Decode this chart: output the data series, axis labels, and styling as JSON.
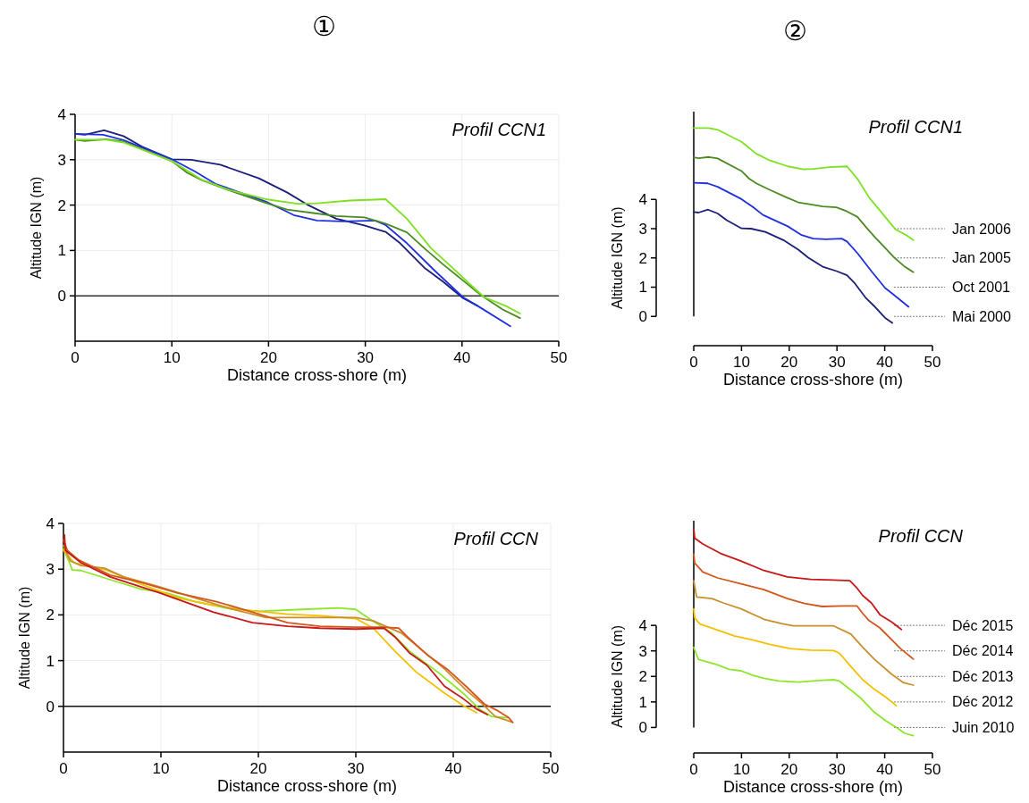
{
  "chart_data": [
    {
      "type": "line",
      "title": "Profil CCN1",
      "annotations": [
        "①"
      ],
      "xlabel": "Distance cross-shore (m)",
      "ylabel": "Altitude IGN (m)",
      "xlim": [
        0,
        50
      ],
      "ylim": [
        -1,
        4
      ],
      "xticks": [
        0,
        10,
        20,
        30,
        40,
        50
      ],
      "yticks": [
        0,
        1,
        2,
        3,
        4
      ],
      "grid": true,
      "line_style": "solid",
      "marker": "none",
      "ref_lines": [
        {
          "axis": "y",
          "value": 0,
          "color": "#333333",
          "line_style": "solid"
        }
      ],
      "series": [
        {
          "color": "#1a1f7a",
          "x": [
            0,
            1,
            3,
            5,
            6.9,
            10,
            12,
            15,
            19,
            21.9,
            24,
            27,
            29.9,
            32.1,
            33.6,
            36.1,
            38,
            40.1,
            41.6
          ],
          "values": [
            3.57,
            3.55,
            3.65,
            3.52,
            3.29,
            3.01,
            3.0,
            2.89,
            2.59,
            2.28,
            2.01,
            1.7,
            1.55,
            1.41,
            1.16,
            0.62,
            0.32,
            -0.05,
            -0.22
          ]
        },
        {
          "color": "#1f2fe0",
          "x": [
            0,
            2.9,
            5,
            10,
            12.4,
            14.5,
            19.7,
            22.6,
            25,
            27.7,
            31,
            32.1,
            34.3,
            37.2,
            40.1,
            41.6,
            45
          ],
          "values": [
            3.57,
            3.55,
            3.43,
            3.01,
            2.74,
            2.47,
            2.08,
            1.78,
            1.66,
            1.64,
            1.66,
            1.56,
            1.16,
            0.55,
            -0.03,
            -0.22,
            -0.67
          ]
        },
        {
          "color": "#4a8a20",
          "x": [
            0,
            1,
            3.2,
            5,
            10,
            11.6,
            13.1,
            16,
            19.7,
            21.9,
            24.8,
            27,
            29.9,
            32.1,
            34.3,
            36.1,
            38,
            39.8,
            42,
            44.2,
            46
          ],
          "values": [
            3.44,
            3.41,
            3.45,
            3.4,
            2.97,
            2.71,
            2.55,
            2.32,
            2.05,
            1.9,
            1.82,
            1.76,
            1.73,
            1.59,
            1.4,
            1.05,
            0.7,
            0.39,
            0.01,
            -0.3,
            -0.49
          ]
        },
        {
          "color": "#7ee021",
          "x": [
            0,
            3.2,
            5,
            10,
            13.1,
            16,
            19.7,
            23,
            25,
            28.4,
            32.1,
            34.3,
            36.8,
            39,
            40.9,
            42.3,
            44.5,
            46
          ],
          "values": [
            3.44,
            3.44,
            3.38,
            2.97,
            2.56,
            2.33,
            2.13,
            2.03,
            2.04,
            2.1,
            2.13,
            1.7,
            1.05,
            0.62,
            0.24,
            -0.03,
            -0.22,
            -0.39
          ]
        }
      ]
    },
    {
      "type": "line",
      "title": "Profil CCN1",
      "annotations": [
        "②"
      ],
      "xlabel": "Distance cross-shore (m)",
      "ylabel": "Altitude IGN (m)",
      "xlim": [
        0,
        50
      ],
      "ylim": [
        -1,
        7
      ],
      "xticks": [
        0,
        10,
        20,
        30,
        40,
        50
      ],
      "yticks": [
        0,
        1,
        2,
        3,
        4
      ],
      "line_style": "solid",
      "marker": "none",
      "ref_lines": [
        {
          "axis": "y",
          "value": 3,
          "label": "Jan 2006",
          "color": "#555555",
          "line_style": "dotted"
        },
        {
          "axis": "y",
          "value": 2,
          "label": "Jan 2005",
          "color": "#555555",
          "line_style": "dotted"
        },
        {
          "axis": "y",
          "value": 1,
          "label": "Oct 2001",
          "color": "#555555",
          "line_style": "dotted"
        },
        {
          "axis": "y",
          "value": 0,
          "label": "Mai 2000",
          "color": "#555555",
          "line_style": "dotted"
        }
      ],
      "series": [
        {
          "color": "#1a1f7a",
          "x": [
            0,
            1,
            3,
            5,
            6.9,
            10,
            12,
            15,
            19,
            21.9,
            24,
            27,
            29.9,
            32.1,
            33.6,
            36.1,
            38,
            40.1,
            41.6
          ],
          "values": [
            3.57,
            3.55,
            3.65,
            3.52,
            3.29,
            3.01,
            3.0,
            2.89,
            2.59,
            2.28,
            2.01,
            1.7,
            1.55,
            1.41,
            1.16,
            0.62,
            0.32,
            -0.05,
            -0.22
          ]
        },
        {
          "color": "#1f2fe0",
          "x": [
            0,
            2.9,
            5,
            10,
            12.4,
            14.5,
            19.7,
            22.6,
            25,
            27.7,
            31,
            32.1,
            34.3,
            37.2,
            40.1,
            41.6,
            45
          ],
          "values": [
            4.57,
            4.55,
            4.43,
            4.01,
            3.74,
            3.47,
            3.08,
            2.78,
            2.66,
            2.64,
            2.66,
            2.56,
            2.16,
            1.55,
            0.97,
            0.78,
            0.33
          ]
        },
        {
          "color": "#4a8a20",
          "x": [
            0,
            1,
            3.2,
            5,
            10,
            11.6,
            13.1,
            16,
            19.7,
            21.9,
            24.8,
            27,
            29.9,
            32.1,
            34.3,
            36.1,
            38,
            39.8,
            42,
            44.2,
            46
          ],
          "values": [
            5.44,
            5.41,
            5.45,
            5.4,
            4.97,
            4.71,
            4.55,
            4.32,
            4.05,
            3.9,
            3.82,
            3.76,
            3.73,
            3.59,
            3.4,
            3.05,
            2.7,
            2.39,
            2.01,
            1.7,
            1.51
          ]
        },
        {
          "color": "#7ee021",
          "x": [
            0,
            3.2,
            5,
            10,
            13.1,
            16,
            19.7,
            23,
            25,
            28.4,
            32.1,
            34.3,
            36.8,
            39,
            40.9,
            42.3,
            44.5,
            46
          ],
          "values": [
            6.44,
            6.44,
            6.38,
            5.97,
            5.56,
            5.33,
            5.13,
            5.03,
            5.04,
            5.1,
            5.13,
            4.7,
            4.05,
            3.62,
            3.24,
            2.97,
            2.78,
            2.61
          ]
        }
      ]
    },
    {
      "type": "line",
      "title": "Profil CCN",
      "xlabel": "Distance cross-shore (m)",
      "ylabel": "Altitude IGN (m)",
      "xlim": [
        0,
        50
      ],
      "ylim": [
        -1,
        4
      ],
      "xticks": [
        0,
        10,
        20,
        30,
        40,
        50
      ],
      "yticks": [
        0,
        1,
        2,
        3,
        4
      ],
      "grid": true,
      "line_style": "solid",
      "marker": "none",
      "ref_lines": [
        {
          "axis": "y",
          "value": 0,
          "color": "#111111",
          "line_style": "solid"
        }
      ],
      "series": [
        {
          "color": "#8ee62b",
          "x": [
            0,
            0.7,
            0.9,
            1.8,
            5.1,
            8,
            10.6,
            13.5,
            17.2,
            20.1,
            24.5,
            28.2,
            30,
            31.5,
            33.7,
            35.5,
            38.4,
            41,
            42.8,
            43.9,
            45.7
          ],
          "values": [
            3.44,
            3.1,
            2.98,
            2.97,
            2.75,
            2.56,
            2.48,
            2.29,
            2.13,
            2.08,
            2.12,
            2.15,
            2.12,
            1.9,
            1.6,
            1.21,
            0.75,
            0.29,
            -0.08,
            -0.22,
            -0.25
          ]
        },
        {
          "color": "#f5c000",
          "x": [
            0,
            1.1,
            4.4,
            8,
            11.7,
            15.4,
            19,
            22.8,
            26.3,
            30,
            31.8,
            34,
            36.2,
            39.1,
            41,
            42.4
          ],
          "values": [
            3.41,
            3.14,
            2.98,
            2.67,
            2.37,
            2.21,
            2.1,
            2.02,
            1.98,
            1.92,
            1.71,
            1.21,
            0.75,
            0.29,
            0.02,
            -0.14
          ]
        },
        {
          "color": "#c98f2c",
          "x": [
            0,
            0.7,
            1.8,
            4.2,
            6.2,
            9.9,
            13.5,
            17.2,
            20.8,
            24.5,
            30,
            31.8,
            34.7,
            36.9,
            39.1,
            41.3,
            42.8,
            44.3,
            46.1
          ],
          "values": [
            3.52,
            3.18,
            3.08,
            3.02,
            2.83,
            2.61,
            2.37,
            2.13,
            1.94,
            1.94,
            1.94,
            1.87,
            1.6,
            1.21,
            0.82,
            0.36,
            0.09,
            -0.22,
            -0.35
          ]
        },
        {
          "color": "#d4561c",
          "x": [
            0,
            0.4,
            1.5,
            4.8,
            8,
            11.7,
            15.7,
            19.4,
            23,
            26.3,
            30,
            32.9,
            34.4,
            35.5,
            37.3,
            39.5,
            41.3,
            43.2,
            44.6,
            45.7,
            46.1
          ],
          "values": [
            3.64,
            3.41,
            3.21,
            2.87,
            2.71,
            2.48,
            2.29,
            2.06,
            1.83,
            1.75,
            1.73,
            1.73,
            1.71,
            1.48,
            1.13,
            0.79,
            0.44,
            0.05,
            -0.1,
            -0.25,
            -0.35
          ]
        },
        {
          "color": "#c81818",
          "x": [
            0.1,
            0.2,
            1.8,
            4.8,
            9.9,
            15.4,
            19.4,
            23,
            26.3,
            30,
            32.9,
            34,
            35.5,
            37.3,
            39.1,
            41,
            42.4,
            43.5
          ],
          "values": [
            3.75,
            3.41,
            3.14,
            2.83,
            2.48,
            2.06,
            1.83,
            1.75,
            1.71,
            1.69,
            1.71,
            1.52,
            1.17,
            0.9,
            0.44,
            0.17,
            -0.06,
            -0.18
          ]
        }
      ]
    },
    {
      "type": "line",
      "title": "Profil CCN",
      "xlabel": "Distance cross-shore (m)",
      "ylabel": "Altitude IGN (m)",
      "xlim": [
        0,
        50
      ],
      "ylim": [
        -1,
        8.1
      ],
      "xticks": [
        0,
        10,
        20,
        30,
        40,
        50
      ],
      "yticks": [
        0,
        1,
        2,
        3,
        4
      ],
      "line_style": "solid",
      "marker": "none",
      "ref_lines": [
        {
          "axis": "y",
          "value": 4,
          "label": "Déc 2015",
          "color": "#555555",
          "line_style": "dotted"
        },
        {
          "axis": "y",
          "value": 3,
          "label": "Déc 2014",
          "color": "#555555",
          "line_style": "dotted"
        },
        {
          "axis": "y",
          "value": 2,
          "label": "Déc 2013",
          "color": "#555555",
          "line_style": "dotted"
        },
        {
          "axis": "y",
          "value": 1,
          "label": "Déc 2012",
          "color": "#555555",
          "line_style": "dotted"
        },
        {
          "axis": "y",
          "value": 0,
          "label": "Juin 2010",
          "color": "#555555",
          "line_style": "dotted"
        }
      ],
      "series": [
        {
          "color": "#8ee62b",
          "x": [
            0,
            1,
            1.9,
            5,
            7.4,
            9.9,
            12.3,
            14.7,
            17.8,
            22,
            26.9,
            29.3,
            30.5,
            32.9,
            34.8,
            37.8,
            40.3,
            42.7,
            44.2,
            46
          ],
          "values": [
            3.14,
            2.66,
            2.62,
            2.45,
            2.28,
            2.22,
            2.05,
            1.93,
            1.82,
            1.78,
            1.85,
            1.87,
            1.82,
            1.47,
            1.18,
            0.6,
            0.25,
            -0.03,
            -0.23,
            -0.32
          ]
        },
        {
          "color": "#f5c000",
          "x": [
            0,
            0.2,
            1.3,
            5,
            8.6,
            12.3,
            15.9,
            20.2,
            24.5,
            29.3,
            30.5,
            32.9,
            35.4,
            37.8,
            40.3,
            42.4
          ],
          "values": [
            4.65,
            4.3,
            4.05,
            3.82,
            3.58,
            3.43,
            3.26,
            3.09,
            3.03,
            3.01,
            2.91,
            2.39,
            1.87,
            1.5,
            1.18,
            0.86
          ]
        },
        {
          "color": "#c98f2c",
          "x": [
            0,
            0.6,
            3.8,
            6.2,
            9.9,
            14.7,
            18.4,
            20.8,
            24.5,
            29.3,
            32.9,
            35.4,
            37.8,
            41.5,
            43.9,
            46
          ],
          "values": [
            5.75,
            5.11,
            5.05,
            4.88,
            4.65,
            4.24,
            4.07,
            3.98,
            3.98,
            3.98,
            3.66,
            3.14,
            2.68,
            2.08,
            1.76,
            1.66
          ]
        },
        {
          "color": "#d4561c",
          "x": [
            0,
            0.2,
            1.9,
            5,
            9.9,
            14.7,
            19.6,
            23.2,
            26.9,
            31.1,
            34.2,
            35.4,
            36.6,
            39,
            41.5,
            43.3,
            46
          ],
          "values": [
            6.79,
            6.44,
            6.09,
            5.86,
            5.63,
            5.4,
            5.05,
            4.86,
            4.74,
            4.76,
            4.76,
            4.47,
            4.21,
            3.9,
            3.43,
            3.09,
            2.68
          ]
        },
        {
          "color": "#c81818",
          "x": [
            0,
            0.2,
            1.9,
            5.6,
            9.9,
            14.7,
            19.6,
            24.5,
            29.3,
            32.7,
            34.2,
            35.4,
            37.2,
            39,
            41.5,
            43.5
          ],
          "values": [
            7.77,
            7.42,
            7.19,
            6.82,
            6.52,
            6.15,
            5.9,
            5.8,
            5.78,
            5.75,
            5.46,
            5.17,
            4.88,
            4.42,
            4.13,
            3.84
          ]
        }
      ]
    }
  ]
}
